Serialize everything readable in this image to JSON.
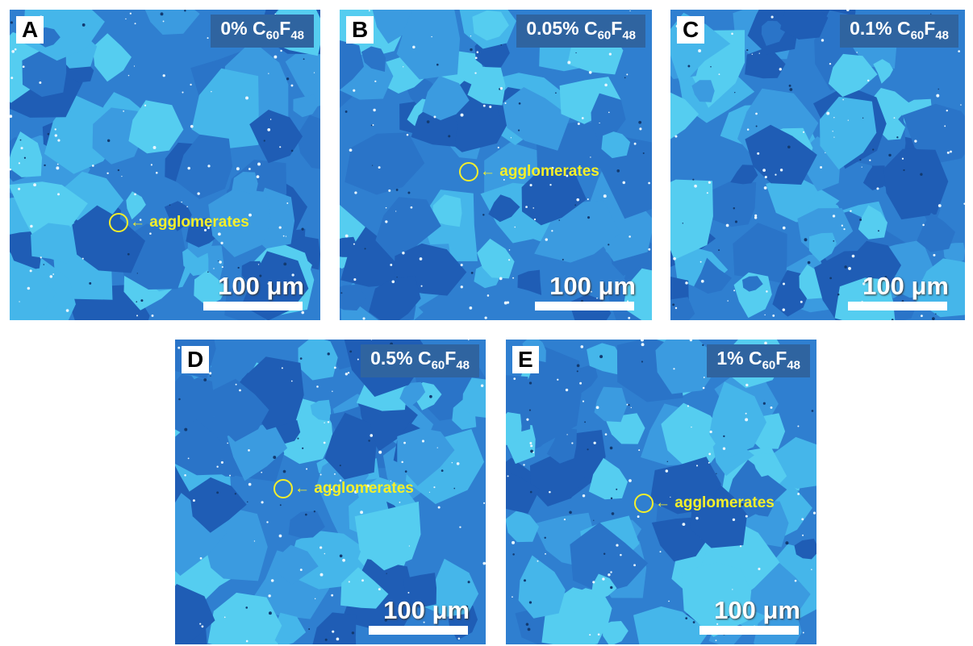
{
  "panels": [
    {
      "letter": "A",
      "label": {
        "text": "0% C",
        "sub1": "60",
        "mid": "F",
        "sub2": "48"
      },
      "annotation": "← agglomerates",
      "scale": "100 μm"
    },
    {
      "letter": "B",
      "label": {
        "text": "0.05% C",
        "sub1": "60",
        "mid": "F",
        "sub2": "48"
      },
      "annotation": "← agglomerates",
      "scale": "100 μm"
    },
    {
      "letter": "C",
      "label": {
        "text": "0.1% C",
        "sub1": "60",
        "mid": "F",
        "sub2": "48"
      },
      "scale": "100 μm"
    },
    {
      "letter": "D",
      "label": {
        "text": "0.5% C",
        "sub1": "60",
        "mid": "F",
        "sub2": "48"
      },
      "annotation": "← agglomerates",
      "scale": "100 μm"
    },
    {
      "letter": "E",
      "label": {
        "text": "1% C",
        "sub1": "60",
        "mid": "F",
        "sub2": "48"
      },
      "annotation": "← agglomerates",
      "scale": "100 μm"
    }
  ]
}
